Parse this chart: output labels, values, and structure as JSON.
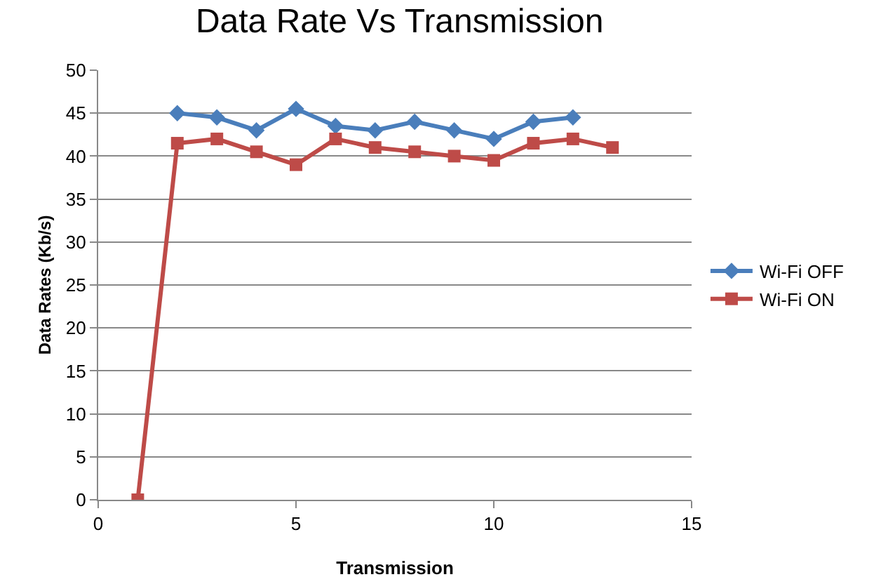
{
  "chart_data": {
    "type": "line",
    "title": "Data Rate Vs Transmission",
    "xlabel": "Transmission",
    "ylabel": "Data Rates (Kb/s)",
    "xlim": [
      0,
      15
    ],
    "xticks": [
      0,
      5,
      10,
      15
    ],
    "ylim": [
      0,
      50
    ],
    "yticks": [
      0,
      5,
      10,
      15,
      20,
      25,
      30,
      35,
      40,
      45,
      50
    ],
    "grid": "y",
    "legend": "right",
    "series": [
      {
        "name": "Wi-Fi OFF",
        "color": "#4a7ebb",
        "marker": "diamond",
        "x": [
          2,
          3,
          4,
          5,
          6,
          7,
          8,
          9,
          10,
          11,
          12
        ],
        "values": [
          45,
          44.5,
          43,
          45.5,
          43.5,
          43,
          44,
          43,
          42,
          44,
          44.5
        ]
      },
      {
        "name": "Wi-Fi ON",
        "color": "#be4b48",
        "marker": "square",
        "x": [
          1,
          2,
          3,
          4,
          5,
          6,
          7,
          8,
          9,
          10,
          11,
          12,
          13
        ],
        "values": [
          0,
          41.5,
          42,
          40.5,
          39,
          42,
          41,
          40.5,
          40,
          39.5,
          41.5,
          42,
          41
        ]
      }
    ]
  }
}
